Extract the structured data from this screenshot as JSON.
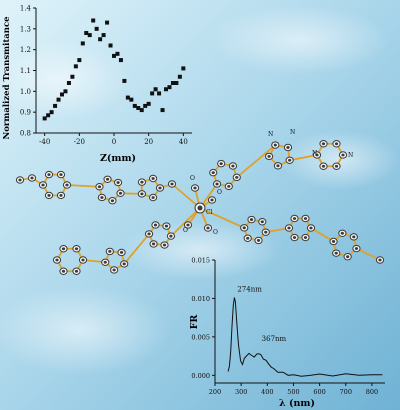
{
  "colors": {
    "background_light": "#dff3fa",
    "background_mid": "#a8d5ea",
    "background_dark": "#6fb2d4",
    "bond": "#e0a12a",
    "atom": "#3a3a3a",
    "axis": "#111111"
  },
  "chart_data": [
    {
      "type": "scatter",
      "xlabel": "Z(mm)",
      "ylabel": "Normalized Transmitance",
      "xlim": [
        -45,
        45
      ],
      "ylim": [
        0.8,
        1.4
      ],
      "xticks": [
        "-40",
        "-20",
        "0",
        "20",
        "40"
      ],
      "yticks": [
        "0.8",
        "0.9",
        "1.0",
        "1.1",
        "1.2",
        "1.3",
        "1.4"
      ],
      "points": [
        [
          -40,
          0.87
        ],
        [
          -38,
          0.885
        ],
        [
          -36,
          0.9
        ],
        [
          -34,
          0.93
        ],
        [
          -32,
          0.96
        ],
        [
          -30,
          0.985
        ],
        [
          -28,
          1.0
        ],
        [
          -26,
          1.04
        ],
        [
          -24,
          1.07
        ],
        [
          -22,
          1.12
        ],
        [
          -20,
          1.15
        ],
        [
          -18,
          1.23
        ],
        [
          -16,
          1.28
        ],
        [
          -14,
          1.27
        ],
        [
          -12,
          1.34
        ],
        [
          -10,
          1.3
        ],
        [
          -8,
          1.25
        ],
        [
          -6,
          1.27
        ],
        [
          -4,
          1.33
        ],
        [
          -2,
          1.22
        ],
        [
          0,
          1.17
        ],
        [
          2,
          1.18
        ],
        [
          4,
          1.15
        ],
        [
          6,
          1.05
        ],
        [
          8,
          0.97
        ],
        [
          10,
          0.96
        ],
        [
          12,
          0.93
        ],
        [
          14,
          0.92
        ],
        [
          16,
          0.91
        ],
        [
          18,
          0.93
        ],
        [
          20,
          0.94
        ],
        [
          22,
          0.99
        ],
        [
          24,
          1.01
        ],
        [
          26,
          0.99
        ],
        [
          28,
          0.91
        ],
        [
          30,
          1.01
        ],
        [
          32,
          1.02
        ],
        [
          34,
          1.04
        ],
        [
          36,
          1.04
        ],
        [
          38,
          1.07
        ],
        [
          40,
          1.11
        ]
      ]
    },
    {
      "type": "line",
      "xlabel": "λ (nm)",
      "ylabel": "FR",
      "xlim": [
        200,
        850
      ],
      "ylim": [
        -0.001,
        0.015
      ],
      "xticks": [
        "200",
        "300",
        "400",
        "500",
        "600",
        "700",
        "800"
      ],
      "yticks": [
        "0.000",
        "0.005",
        "0.010",
        "0.015"
      ],
      "annotations": [
        {
          "text": "274nm",
          "x": 274,
          "y": 0.0104
        },
        {
          "text": "367nm",
          "x": 367,
          "y": 0.0042
        }
      ],
      "series": [
        {
          "x": [
            250,
            255,
            260,
            265,
            270,
            274,
            278,
            283,
            290,
            298,
            305,
            312,
            320,
            330,
            340,
            350,
            360,
            367,
            375,
            385,
            395,
            405,
            415,
            425,
            440,
            460,
            480,
            500,
            530,
            560,
            600,
            650,
            700,
            750,
            800,
            840
          ],
          "y": [
            0.0005,
            0.0012,
            0.003,
            0.0065,
            0.009,
            0.0102,
            0.0095,
            0.007,
            0.004,
            0.0018,
            0.0015,
            0.0021,
            0.0026,
            0.0028,
            0.0026,
            0.0024,
            0.0027,
            0.0029,
            0.0026,
            0.0022,
            0.0019,
            0.0015,
            0.0011,
            0.0008,
            0.0005,
            0.0003,
            0.0001,
            0.0,
            -0.0001,
            0.0,
            0.0001,
            0.0,
            0.0001,
            0.0001,
            0.0,
            0.0001
          ]
        }
      ]
    }
  ],
  "molecule": {
    "atom_labels": [
      "N",
      "N",
      "N",
      "N",
      "O",
      "O",
      "O",
      "O",
      "Cl"
    ]
  }
}
